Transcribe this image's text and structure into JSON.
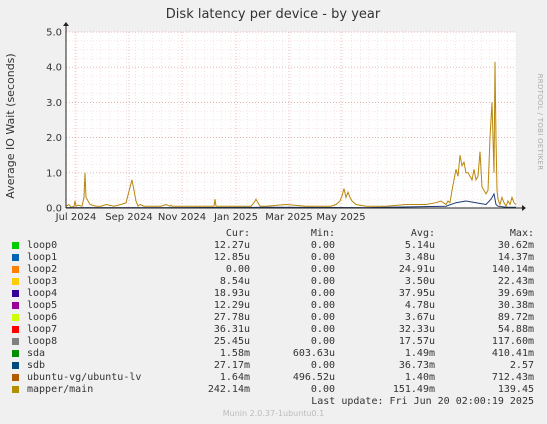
{
  "chart_data": {
    "type": "line",
    "title": "Disk latency per device - by year",
    "ylabel": "Average IO Wait (seconds)",
    "ylim": [
      0,
      5
    ],
    "y_ticks": [
      "0.0",
      "1.0",
      "2.0",
      "3.0",
      "4.0",
      "5.0"
    ],
    "x_ticks": [
      "Jul 2024",
      "Sep 2024",
      "Nov 2024",
      "Jan 2025",
      "Mar 2025",
      "May 2025"
    ],
    "grid": true,
    "series": [
      {
        "name": "mapper/main",
        "color": "#b8860b",
        "x": [
          0,
          3,
          5,
          8,
          9,
          10,
          12,
          16,
          18,
          19,
          20,
          24,
          30,
          35,
          40,
          48,
          55,
          60,
          66,
          70,
          72,
          74,
          78,
          85,
          95,
          100,
          104,
          105,
          106,
          110,
          120,
          140,
          148,
          149,
          150,
          160,
          180,
          185,
          188,
          190,
          194,
          200,
          220,
          240,
          255,
          265,
          270,
          274,
          276,
          278,
          280,
          282,
          284,
          286,
          290,
          300,
          320,
          340,
          360,
          370,
          375,
          380,
          382,
          384,
          386,
          390,
          392,
          394,
          396,
          398,
          400,
          402,
          404,
          406,
          408,
          410,
          412,
          414,
          416,
          418,
          420,
          422,
          424,
          426,
          428,
          429,
          430,
          431,
          432,
          434,
          436,
          438,
          440,
          442,
          444,
          446,
          448,
          450
        ],
        "y": [
          0.05,
          0.1,
          0.02,
          0.05,
          0.2,
          0.05,
          0.08,
          0.05,
          0.3,
          1.0,
          0.3,
          0.1,
          0.05,
          0.05,
          0.1,
          0.05,
          0.1,
          0.15,
          0.8,
          0.2,
          0.05,
          0.1,
          0.05,
          0.05,
          0.05,
          0.1,
          0.05,
          0.08,
          0.05,
          0.05,
          0.05,
          0.05,
          0.05,
          0.25,
          0.05,
          0.05,
          0.05,
          0.05,
          0.15,
          0.25,
          0.05,
          0.05,
          0.1,
          0.05,
          0.05,
          0.05,
          0.1,
          0.2,
          0.35,
          0.55,
          0.3,
          0.45,
          0.3,
          0.2,
          0.1,
          0.05,
          0.05,
          0.1,
          0.1,
          0.15,
          0.2,
          0.1,
          0.2,
          0.15,
          0.5,
          1.1,
          0.9,
          1.5,
          1.2,
          1.3,
          1.0,
          1.0,
          0.9,
          0.8,
          1.1,
          0.8,
          0.9,
          1.6,
          0.6,
          0.5,
          0.4,
          0.5,
          2.0,
          3.0,
          1.0,
          4.15,
          2.0,
          0.5,
          0.25,
          0.1,
          0.3,
          0.15,
          0.05,
          0.2,
          0.1,
          0.3,
          0.15,
          0.1
        ]
      },
      {
        "name": "sdb",
        "color": "#1c3a70",
        "x": [
          0,
          100,
          200,
          300,
          380,
          390,
          400,
          410,
          420,
          425,
          428,
          430,
          432,
          440,
          450
        ],
        "y": [
          0.01,
          0.01,
          0.02,
          0.01,
          0.05,
          0.15,
          0.2,
          0.15,
          0.1,
          0.25,
          0.4,
          0.1,
          0.05,
          0.02,
          0.02
        ]
      }
    ],
    "legend": {
      "headers": [
        "Cur:",
        "Min:",
        "Avg:",
        "Max:"
      ],
      "rows": [
        {
          "name": "loop0",
          "color": "#00cc00",
          "cur": "12.27u",
          "min": "0.00",
          "avg": "5.14u",
          "max": "30.62m"
        },
        {
          "name": "loop1",
          "color": "#0066b3",
          "cur": "12.85u",
          "min": "0.00",
          "avg": "3.48u",
          "max": "14.37m"
        },
        {
          "name": "loop2",
          "color": "#ff8000",
          "cur": "0.00",
          "min": "0.00",
          "avg": "24.91u",
          "max": "140.14m"
        },
        {
          "name": "loop3",
          "color": "#ffcc00",
          "cur": "8.54u",
          "min": "0.00",
          "avg": "3.50u",
          "max": "22.43m"
        },
        {
          "name": "loop4",
          "color": "#330099",
          "cur": "18.93u",
          "min": "0.00",
          "avg": "37.95u",
          "max": "39.69m"
        },
        {
          "name": "loop5",
          "color": "#990099",
          "cur": "12.29u",
          "min": "0.00",
          "avg": "4.78u",
          "max": "30.38m"
        },
        {
          "name": "loop6",
          "color": "#ccff00",
          "cur": "27.78u",
          "min": "0.00",
          "avg": "3.67u",
          "max": "89.72m"
        },
        {
          "name": "loop7",
          "color": "#ff0000",
          "cur": "36.31u",
          "min": "0.00",
          "avg": "32.33u",
          "max": "54.88m"
        },
        {
          "name": "loop8",
          "color": "#808080",
          "cur": "25.45u",
          "min": "0.00",
          "avg": "17.57u",
          "max": "117.60m"
        },
        {
          "name": "sda",
          "color": "#008f00",
          "cur": "1.58m",
          "min": "603.63u",
          "avg": "1.49m",
          "max": "410.41m"
        },
        {
          "name": "sdb",
          "color": "#00487d",
          "cur": "27.17m",
          "min": "0.00",
          "avg": "36.73m",
          "max": "2.57"
        },
        {
          "name": "ubuntu-vg/ubuntu-lv",
          "color": "#b35a00",
          "cur": "1.64m",
          "min": "496.52u",
          "avg": "1.40m",
          "max": "712.43m"
        },
        {
          "name": "mapper/main",
          "color": "#b38f00",
          "cur": "242.14m",
          "min": "0.00",
          "avg": "151.49m",
          "max": "139.45"
        }
      ]
    }
  },
  "side_text": "RRDTOOL / TOBI OETIKER",
  "last_update": "Last update: Fri Jun 20 02:00:19 2025",
  "footer": "Munin 2.0.37-1ubuntu0.1"
}
